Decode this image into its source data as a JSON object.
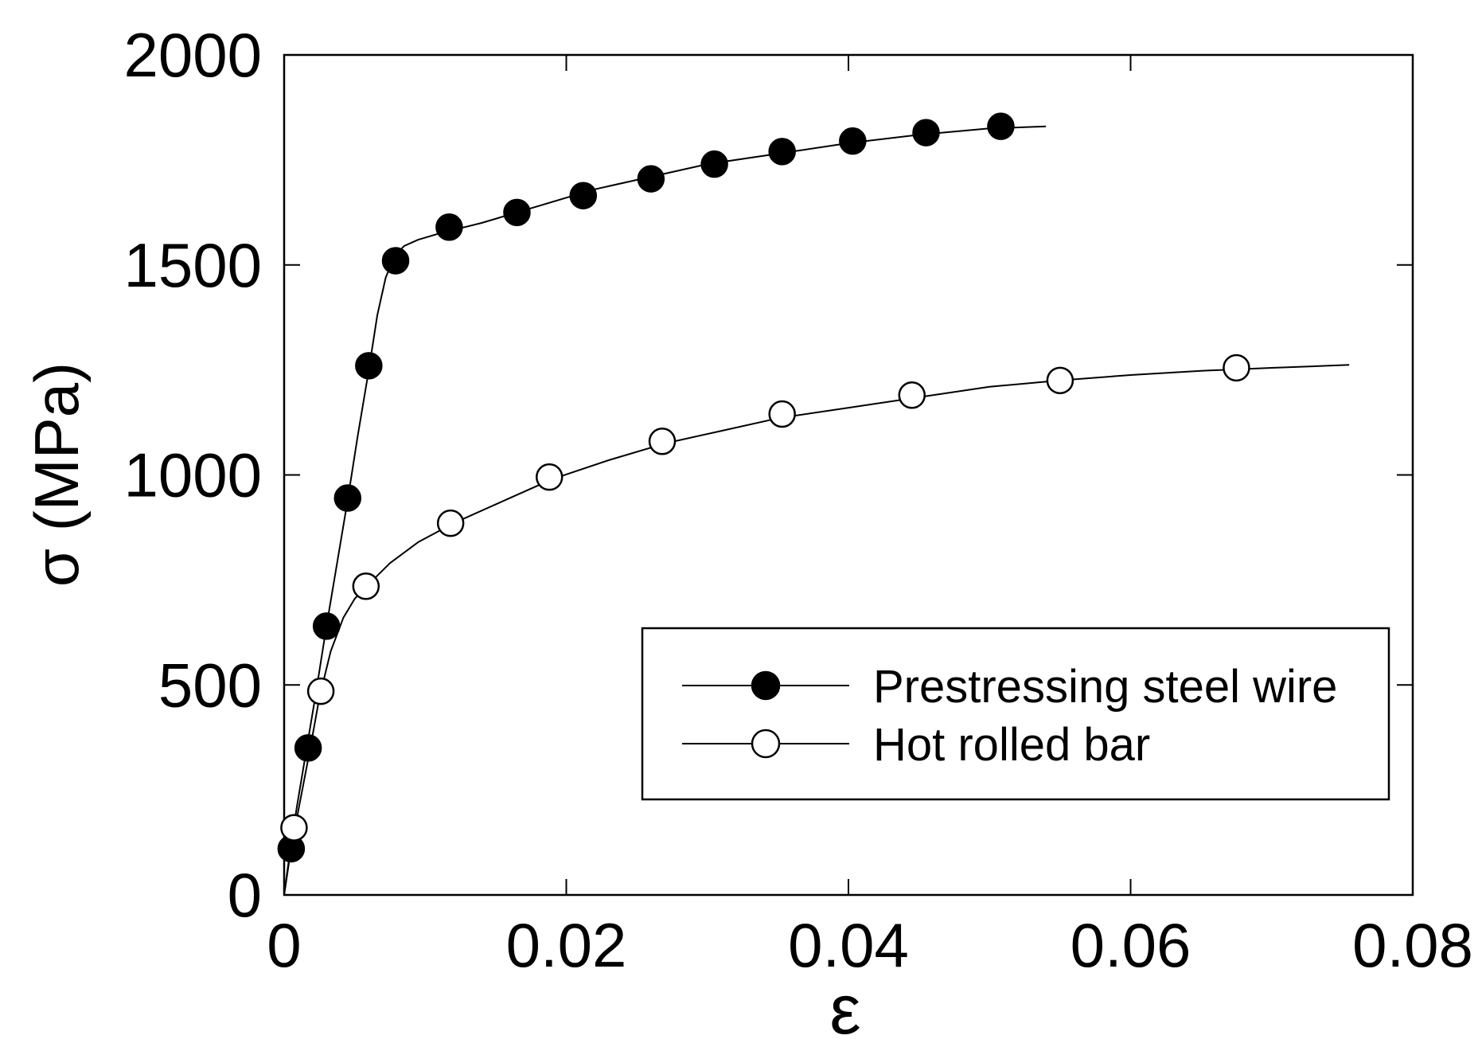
{
  "chart_data": {
    "type": "line",
    "title": "",
    "xlabel": "ε",
    "ylabel": "σ (MPa)",
    "xlim": [
      0,
      0.08
    ],
    "ylim": [
      0,
      2000
    ],
    "xticks": [
      0,
      0.02,
      0.04,
      0.06,
      0.08
    ],
    "xtick_labels": [
      "0",
      "0.02",
      "0.04",
      "0.06",
      "0.08"
    ],
    "yticks": [
      0,
      500,
      1000,
      1500,
      2000
    ],
    "ytick_labels": [
      "0",
      "500",
      "1000",
      "1500",
      "2000"
    ],
    "grid": false,
    "legend": {
      "position": "lower-right",
      "entries": [
        "Prestressing steel wire",
        "Hot rolled bar"
      ]
    },
    "series": [
      {
        "name": "Prestressing steel wire",
        "marker": "filled-circle",
        "color": "#000000",
        "line_x": [
          0,
          0.0004,
          0.0009,
          0.0015,
          0.0022,
          0.003,
          0.0038,
          0.0045,
          0.0052,
          0.006,
          0.0066,
          0.0072,
          0.0078,
          0.0085,
          0.0095,
          0.011,
          0.014,
          0.018,
          0.022,
          0.026,
          0.03,
          0.035,
          0.04,
          0.045,
          0.05,
          0.054
        ],
        "line_y": [
          0,
          100,
          210,
          330,
          470,
          640,
          800,
          940,
          1090,
          1250,
          1380,
          1470,
          1520,
          1545,
          1560,
          1575,
          1600,
          1640,
          1680,
          1710,
          1740,
          1765,
          1790,
          1810,
          1825,
          1830
        ],
        "markers_x": [
          0.0005,
          0.0017,
          0.003,
          0.0045,
          0.006,
          0.0079,
          0.0117,
          0.0165,
          0.0212,
          0.026,
          0.0305,
          0.0353,
          0.0403,
          0.0455,
          0.0508
        ],
        "markers_y": [
          110,
          350,
          640,
          945,
          1260,
          1510,
          1590,
          1625,
          1665,
          1705,
          1740,
          1770,
          1795,
          1815,
          1830
        ]
      },
      {
        "name": "Hot rolled bar",
        "marker": "open-circle",
        "color": "#000000",
        "line_x": [
          0,
          0.0004,
          0.001,
          0.0018,
          0.0025,
          0.0033,
          0.0042,
          0.005,
          0.006,
          0.0075,
          0.0095,
          0.012,
          0.015,
          0.019,
          0.023,
          0.027,
          0.031,
          0.035,
          0.04,
          0.045,
          0.05,
          0.055,
          0.06,
          0.065,
          0.07,
          0.0755
        ],
        "line_y": [
          0,
          90,
          200,
          340,
          470,
          580,
          660,
          705,
          740,
          790,
          840,
          885,
          930,
          990,
          1035,
          1075,
          1105,
          1135,
          1160,
          1185,
          1210,
          1225,
          1238,
          1248,
          1255,
          1262
        ],
        "markers_x": [
          0.0007,
          0.0026,
          0.0058,
          0.0118,
          0.0188,
          0.0268,
          0.0353,
          0.0445,
          0.055,
          0.0675
        ],
        "markers_y": [
          160,
          485,
          735,
          885,
          995,
          1080,
          1145,
          1190,
          1225,
          1255
        ]
      }
    ]
  }
}
